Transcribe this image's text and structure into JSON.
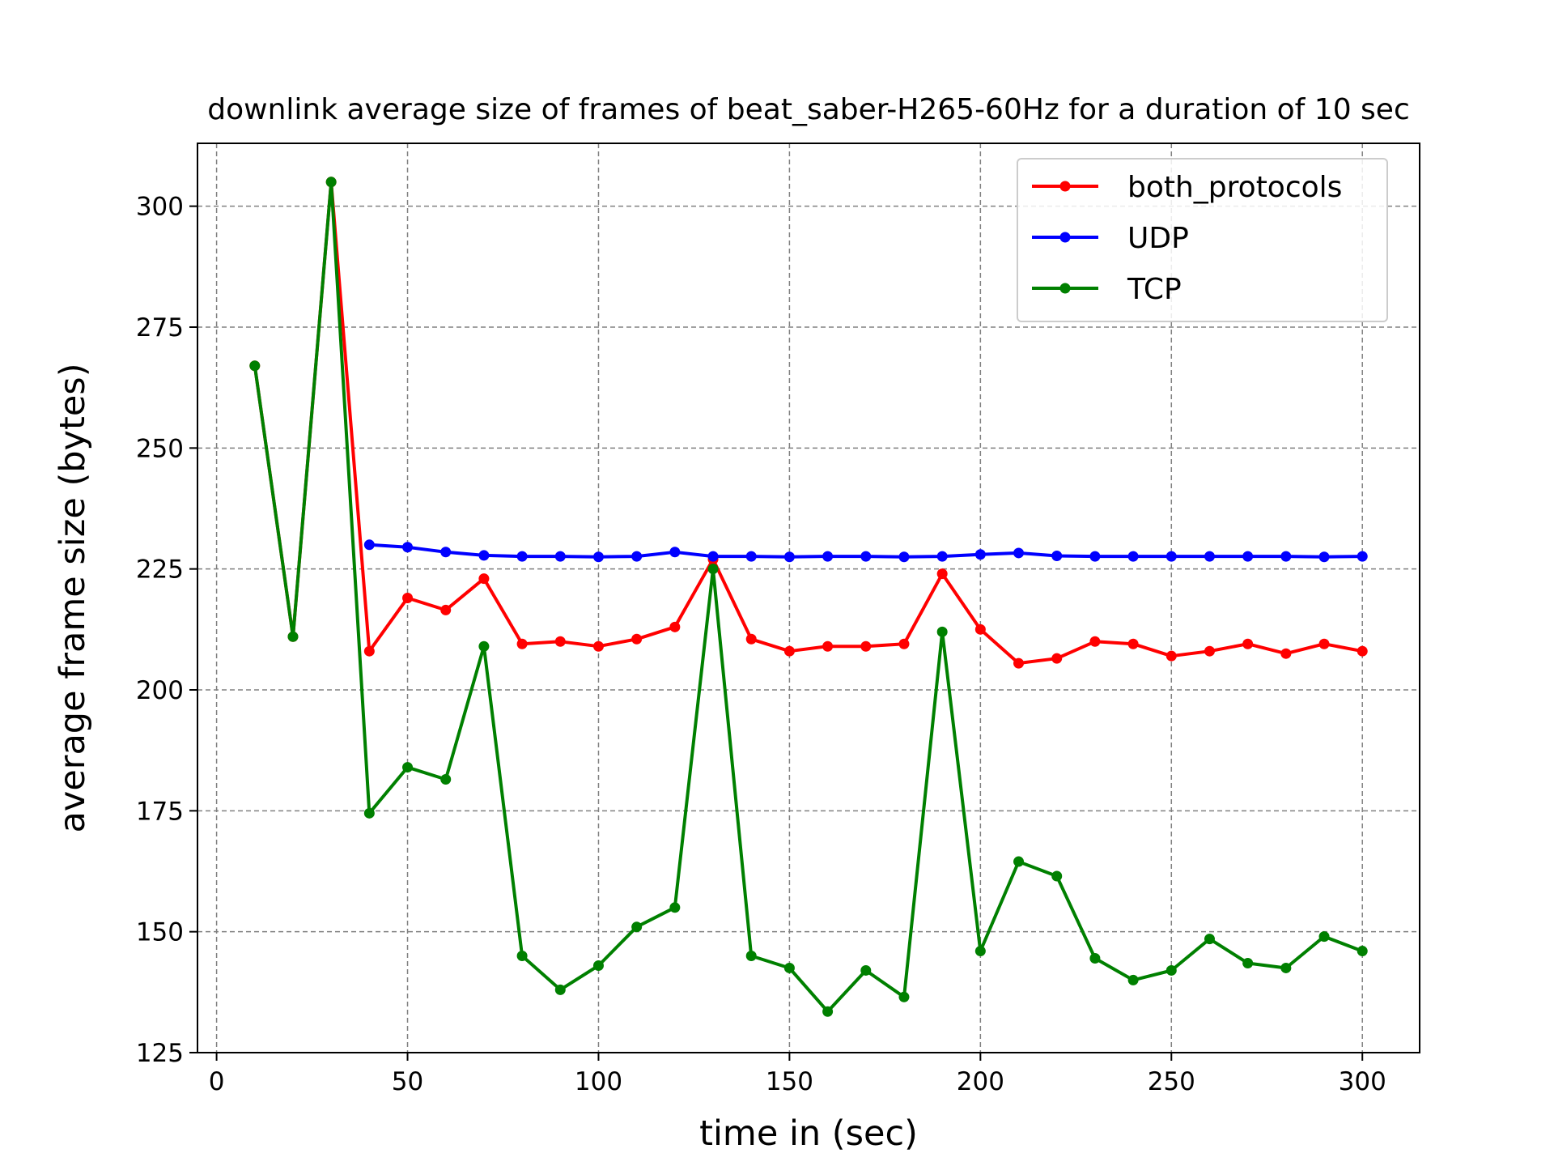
{
  "chart_data": {
    "type": "line",
    "title": "downlink average size of frames of beat_saber-H265-60Hz for a duration of 10 sec",
    "xlabel": "time in (sec)",
    "ylabel": "average frame size (bytes)",
    "xlim": [
      -5,
      315
    ],
    "ylim": [
      125,
      313
    ],
    "xticks": [
      0,
      50,
      100,
      150,
      200,
      250,
      300
    ],
    "yticks": [
      125,
      150,
      175,
      200,
      225,
      250,
      275,
      300
    ],
    "grid": true,
    "legend_position": "top-right",
    "series": [
      {
        "name": "both_protocols",
        "color": "#ff0000",
        "x": [
          10,
          20,
          30,
          40,
          50,
          60,
          70,
          80,
          90,
          100,
          110,
          120,
          130,
          140,
          150,
          160,
          170,
          180,
          190,
          200,
          210,
          220,
          230,
          240,
          250,
          260,
          270,
          280,
          290,
          300
        ],
        "y": [
          267,
          211,
          305,
          208,
          219,
          216.5,
          223,
          209.5,
          210,
          209,
          210.5,
          213,
          227,
          210.5,
          208,
          209,
          209,
          209.5,
          224,
          212.5,
          205.5,
          206.5,
          210,
          209.5,
          207,
          208,
          209.5,
          207.5,
          209.5,
          208
        ]
      },
      {
        "name": "UDP",
        "color": "#0000ff",
        "x": [
          40,
          50,
          60,
          70,
          80,
          90,
          100,
          110,
          120,
          130,
          140,
          150,
          160,
          170,
          180,
          190,
          200,
          210,
          220,
          230,
          240,
          250,
          260,
          270,
          280,
          290,
          300
        ],
        "y": [
          230,
          229.5,
          228.5,
          227.8,
          227.6,
          227.6,
          227.5,
          227.6,
          228.5,
          227.6,
          227.6,
          227.5,
          227.6,
          227.6,
          227.5,
          227.6,
          228,
          228.3,
          227.7,
          227.6,
          227.6,
          227.6,
          227.6,
          227.6,
          227.6,
          227.5,
          227.6
        ]
      },
      {
        "name": "TCP",
        "color": "#008000",
        "x": [
          10,
          20,
          30,
          40,
          50,
          60,
          70,
          80,
          90,
          100,
          110,
          120,
          130,
          140,
          150,
          160,
          170,
          180,
          190,
          200,
          210,
          220,
          230,
          240,
          250,
          260,
          270,
          280,
          290,
          300
        ],
        "y": [
          267,
          211,
          305,
          174.5,
          184,
          181.5,
          209,
          145,
          138,
          143,
          151,
          155,
          225,
          145,
          142.5,
          133.5,
          142,
          136.5,
          212,
          146,
          164.5,
          161.5,
          144.5,
          140,
          142,
          148.5,
          143.5,
          142.5,
          149,
          146
        ]
      }
    ]
  }
}
